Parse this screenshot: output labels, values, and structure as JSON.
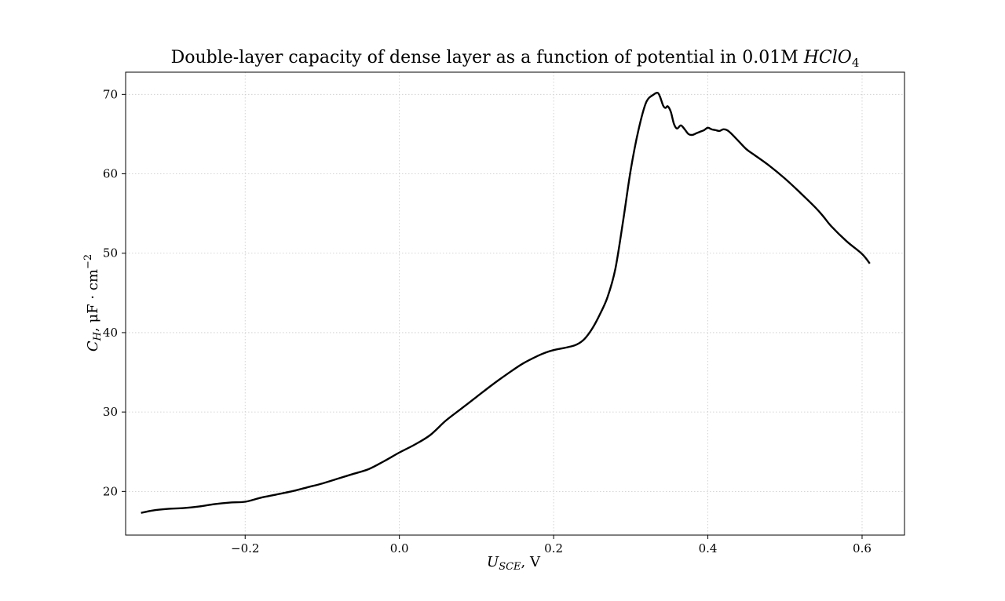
{
  "chart_data": {
    "type": "line",
    "title": {
      "main": "Double-layer capacity of dense layer as a function of potential in 0.01M ",
      "formula": "HClO",
      "formula_sub": "4"
    },
    "xlabel": {
      "symbol": "U",
      "sub": "SCE",
      "rest": ", V"
    },
    "ylabel": {
      "symbol": "C",
      "sub": "H",
      "rest": ", μF · cm",
      "sup": "−2"
    },
    "xlim": [
      -0.355,
      0.655
    ],
    "ylim": [
      14.5,
      72.8
    ],
    "xticks": [
      -0.2,
      0.0,
      0.2,
      0.4,
      0.6
    ],
    "xtick_labels": [
      "−0.2",
      "0.0",
      "0.2",
      "0.4",
      "0.6"
    ],
    "yticks": [
      20,
      30,
      40,
      50,
      60,
      70
    ],
    "ytick_labels": [
      "20",
      "30",
      "40",
      "50",
      "60",
      "70"
    ],
    "grid": true,
    "line_color": "#000000",
    "grid_color": "#c8c8c8",
    "series": [
      {
        "x": [
          -0.335,
          -0.32,
          -0.3,
          -0.28,
          -0.26,
          -0.24,
          -0.22,
          -0.2,
          -0.18,
          -0.16,
          -0.14,
          -0.12,
          -0.1,
          -0.08,
          -0.06,
          -0.04,
          -0.02,
          0.0,
          0.02,
          0.04,
          0.06,
          0.08,
          0.1,
          0.12,
          0.14,
          0.16,
          0.18,
          0.19,
          0.2,
          0.21,
          0.22,
          0.23,
          0.24,
          0.25,
          0.26,
          0.27,
          0.28,
          0.29,
          0.3,
          0.31,
          0.32,
          0.33,
          0.335,
          0.338,
          0.342,
          0.345,
          0.348,
          0.352,
          0.356,
          0.36,
          0.365,
          0.37,
          0.375,
          0.38,
          0.385,
          0.39,
          0.395,
          0.4,
          0.405,
          0.41,
          0.415,
          0.42,
          0.425,
          0.43,
          0.44,
          0.45,
          0.46,
          0.48,
          0.5,
          0.52,
          0.54,
          0.55,
          0.56,
          0.58,
          0.6,
          0.61
        ],
        "y": [
          17.3,
          17.6,
          17.8,
          17.9,
          18.1,
          18.4,
          18.6,
          18.7,
          19.2,
          19.6,
          20.0,
          20.5,
          21.0,
          21.6,
          22.2,
          22.8,
          23.8,
          24.9,
          25.9,
          27.1,
          28.9,
          30.4,
          31.9,
          33.4,
          34.8,
          36.1,
          37.1,
          37.5,
          37.8,
          38.0,
          38.2,
          38.5,
          39.2,
          40.5,
          42.3,
          44.5,
          48.0,
          54.0,
          60.5,
          65.5,
          69.0,
          70.0,
          70.2,
          69.7,
          68.6,
          68.3,
          68.5,
          67.8,
          66.3,
          65.7,
          66.1,
          65.6,
          65.0,
          64.9,
          65.1,
          65.3,
          65.5,
          65.8,
          65.6,
          65.5,
          65.4,
          65.6,
          65.5,
          65.1,
          64.1,
          63.1,
          62.4,
          61.0,
          59.4,
          57.6,
          55.7,
          54.6,
          53.4,
          51.5,
          49.9,
          48.7
        ]
      }
    ]
  }
}
